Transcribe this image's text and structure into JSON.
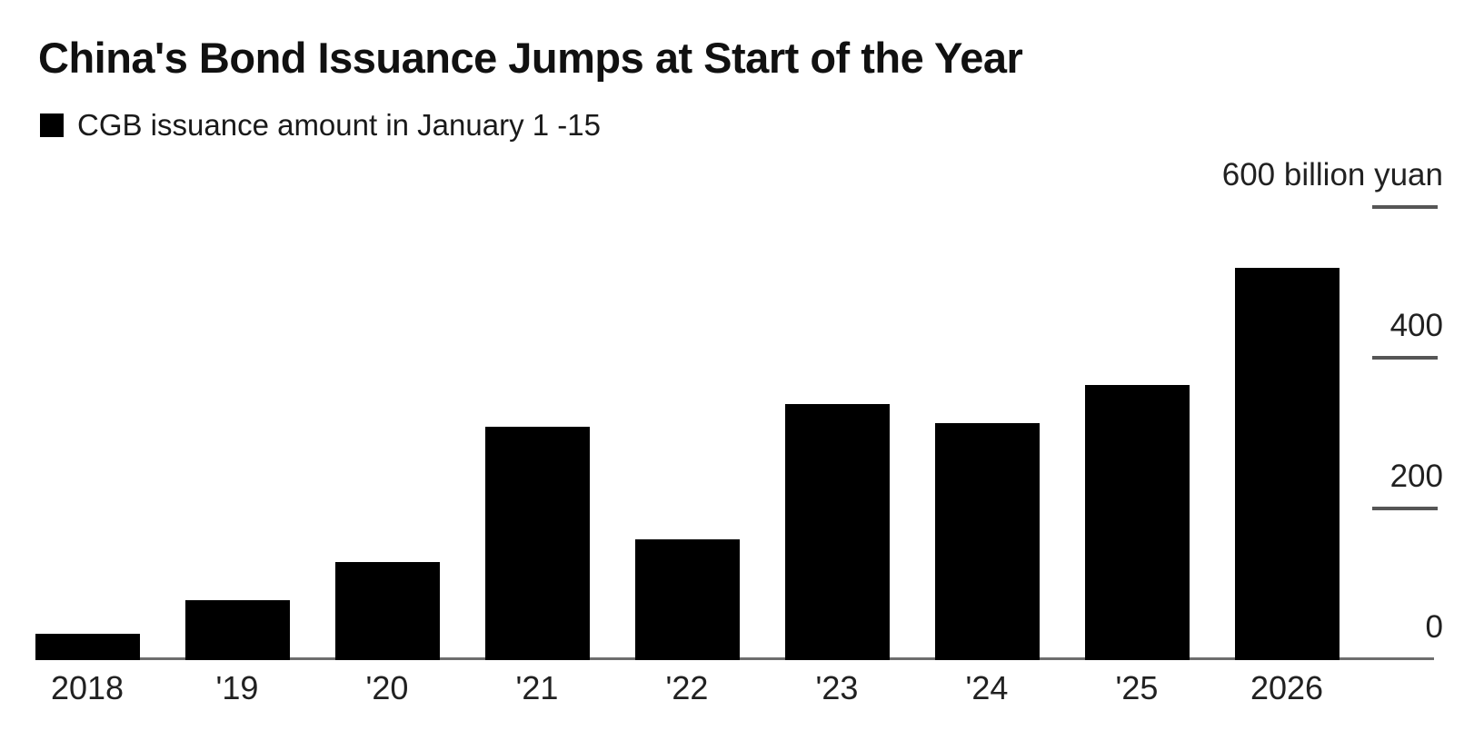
{
  "page": {
    "background_color": "#ffffff"
  },
  "header": {
    "title": "China's Bond Issuance Jumps at Start of the Year",
    "legend": {
      "swatch_color": "#000000",
      "label": "CGB issuance amount in January 1 -15"
    }
  },
  "chart_data": {
    "type": "bar",
    "title": "China's Bond Issuance Jumps at Start of the Year",
    "series_name": "CGB issuance amount in January 1 -15",
    "categories": [
      "2018",
      "'19",
      "'20",
      "'21",
      "'22",
      "'23",
      "'24",
      "'25",
      "2026"
    ],
    "values": [
      35,
      80,
      130,
      310,
      160,
      340,
      315,
      365,
      520
    ],
    "unit": "billion yuan",
    "xlabel": "",
    "ylabel": "billion yuan",
    "ylim": [
      0,
      600
    ],
    "yticks": [
      0,
      200,
      400,
      600
    ],
    "ytick_labels": [
      "0",
      "200",
      "400",
      "600 billion yuan"
    ],
    "y_axis_side": "right",
    "grid": false,
    "legend_position": "top-left",
    "bar_color": "#000000",
    "axis_line_color": "#6e6e6e",
    "tick_line_color": "#565656",
    "label_color": "#212121"
  }
}
